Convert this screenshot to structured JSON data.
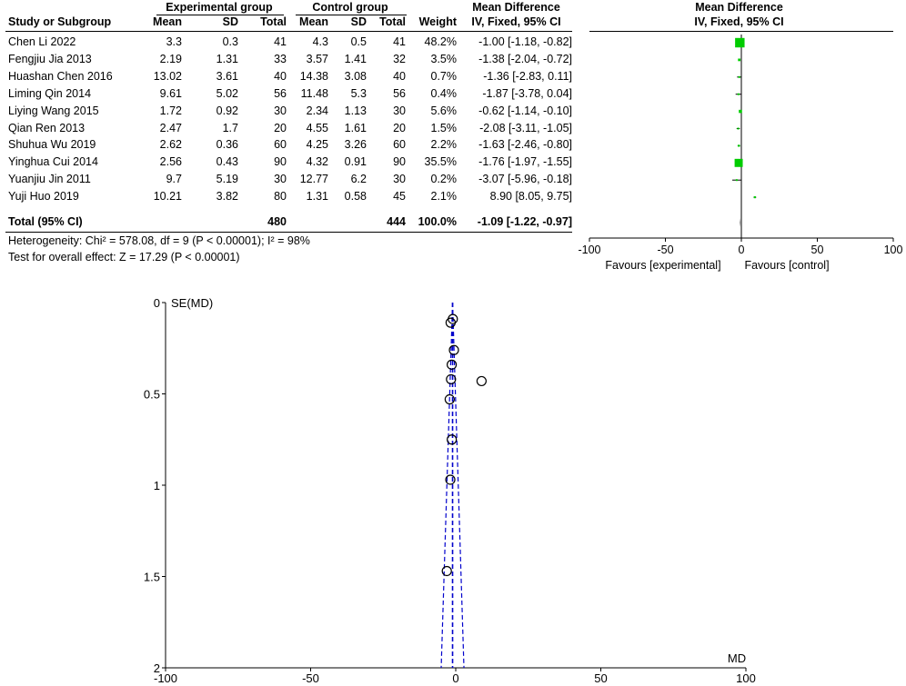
{
  "headers": {
    "experimental": "Experimental group",
    "control": "Control group",
    "md": "Mean Difference",
    "md_method": "IV, Fixed, 95% CI",
    "md_plot": "Mean Difference",
    "md_plot_method": "IV, Fixed, 95% CI",
    "study": "Study or Subgroup",
    "mean": "Mean",
    "sd": "SD",
    "total": "Total",
    "weight": "Weight"
  },
  "studies": [
    {
      "name": "Chen Li 2022",
      "e_mean": "3.3",
      "e_sd": "0.3",
      "e_total": "41",
      "c_mean": "4.3",
      "c_sd": "0.5",
      "c_total": "41",
      "weight": "48.2%",
      "ci_text": "-1.00 [-1.18, -0.82]"
    },
    {
      "name": "Fengjiu Jia 2013",
      "e_mean": "2.19",
      "e_sd": "1.31",
      "e_total": "33",
      "c_mean": "3.57",
      "c_sd": "1.41",
      "c_total": "32",
      "weight": "3.5%",
      "ci_text": "-1.38 [-2.04, -0.72]"
    },
    {
      "name": "Huashan Chen 2016",
      "e_mean": "13.02",
      "e_sd": "3.61",
      "e_total": "40",
      "c_mean": "14.38",
      "c_sd": "3.08",
      "c_total": "40",
      "weight": "0.7%",
      "ci_text": "-1.36 [-2.83, 0.11]"
    },
    {
      "name": "Liming Qin 2014",
      "e_mean": "9.61",
      "e_sd": "5.02",
      "e_total": "56",
      "c_mean": "11.48",
      "c_sd": "5.3",
      "c_total": "56",
      "weight": "0.4%",
      "ci_text": "-1.87 [-3.78, 0.04]"
    },
    {
      "name": "Liying Wang 2015",
      "e_mean": "1.72",
      "e_sd": "0.92",
      "e_total": "30",
      "c_mean": "2.34",
      "c_sd": "1.13",
      "c_total": "30",
      "weight": "5.6%",
      "ci_text": "-0.62 [-1.14, -0.10]"
    },
    {
      "name": "Qian Ren 2013",
      "e_mean": "2.47",
      "e_sd": "1.7",
      "e_total": "20",
      "c_mean": "4.55",
      "c_sd": "1.61",
      "c_total": "20",
      "weight": "1.5%",
      "ci_text": "-2.08 [-3.11, -1.05]"
    },
    {
      "name": "Shuhua Wu 2019",
      "e_mean": "2.62",
      "e_sd": "0.36",
      "e_total": "60",
      "c_mean": "4.25",
      "c_sd": "3.26",
      "c_total": "60",
      "weight": "2.2%",
      "ci_text": "-1.63 [-2.46, -0.80]"
    },
    {
      "name": "Yinghua Cui 2014",
      "e_mean": "2.56",
      "e_sd": "0.43",
      "e_total": "90",
      "c_mean": "4.32",
      "c_sd": "0.91",
      "c_total": "90",
      "weight": "35.5%",
      "ci_text": "-1.76 [-1.97, -1.55]"
    },
    {
      "name": "Yuanjiu Jin 2011",
      "e_mean": "9.7",
      "e_sd": "5.19",
      "e_total": "30",
      "c_mean": "12.77",
      "c_sd": "6.2",
      "c_total": "30",
      "weight": "0.2%",
      "ci_text": "-3.07 [-5.96, -0.18]"
    },
    {
      "name": "Yuji Huo 2019",
      "e_mean": "10.21",
      "e_sd": "3.82",
      "e_total": "80",
      "c_mean": "1.31",
      "c_sd": "0.58",
      "c_total": "45",
      "weight": "2.1%",
      "ci_text": "8.90 [8.05, 9.75]"
    }
  ],
  "total": {
    "label": "Total (95% CI)",
    "e_total": "480",
    "c_total": "444",
    "weight": "100.0%",
    "ci_text": "-1.09 [-1.22, -0.97]"
  },
  "heterogeneity": "Heterogeneity: Chi² = 578.08, df = 9 (P < 0.00001); I² = 98%",
  "overall_effect": "Test for overall effect: Z = 17.29 (P < 0.00001)",
  "favours_experimental": "Favours [experimental]",
  "favours_control": "Favours [control]",
  "colors": {
    "square": "#00cc00",
    "funnel_line": "#0000cc",
    "axis": "#000000"
  },
  "chart_data": [
    {
      "type": "forest",
      "xlim": [
        -100,
        100
      ],
      "xticks": [
        "-100",
        "-50",
        "0",
        "50",
        "100"
      ],
      "points": [
        {
          "study": "Chen Li 2022",
          "md": -1.0,
          "lo": -1.18,
          "hi": -0.82,
          "weight": 48.2
        },
        {
          "study": "Fengjiu Jia 2013",
          "md": -1.38,
          "lo": -2.04,
          "hi": -0.72,
          "weight": 3.5
        },
        {
          "study": "Huashan Chen 2016",
          "md": -1.36,
          "lo": -2.83,
          "hi": 0.11,
          "weight": 0.7
        },
        {
          "study": "Liming Qin 2014",
          "md": -1.87,
          "lo": -3.78,
          "hi": 0.04,
          "weight": 0.4
        },
        {
          "study": "Liying Wang 2015",
          "md": -0.62,
          "lo": -1.14,
          "hi": -0.1,
          "weight": 5.6
        },
        {
          "study": "Qian Ren 2013",
          "md": -2.08,
          "lo": -3.11,
          "hi": -1.05,
          "weight": 1.5
        },
        {
          "study": "Shuhua Wu 2019",
          "md": -1.63,
          "lo": -2.46,
          "hi": -0.8,
          "weight": 2.2
        },
        {
          "study": "Yinghua Cui 2014",
          "md": -1.76,
          "lo": -1.97,
          "hi": -1.55,
          "weight": 35.5
        },
        {
          "study": "Yuanjiu Jin 2011",
          "md": -3.07,
          "lo": -5.96,
          "hi": -0.18,
          "weight": 0.2
        },
        {
          "study": "Yuji Huo 2019",
          "md": 8.9,
          "lo": 8.05,
          "hi": 9.75,
          "weight": 2.1
        }
      ],
      "pooled": {
        "md": -1.09,
        "lo": -1.22,
        "hi": -0.97
      }
    },
    {
      "type": "scatter",
      "xlabel": "MD",
      "ylabel": "SE(MD)",
      "xlim": [
        -100,
        100
      ],
      "ylim": [
        0,
        2
      ],
      "y_reversed": true,
      "xticks": [
        "-100",
        "-50",
        "0",
        "50",
        "100"
      ],
      "yticks": [
        "0",
        "0.5",
        "1",
        "1.5",
        "2"
      ],
      "pooled_md": -1.09,
      "points": [
        {
          "x": -1.0,
          "y": 0.09
        },
        {
          "x": -1.38,
          "y": 0.34
        },
        {
          "x": -1.36,
          "y": 0.75
        },
        {
          "x": -1.87,
          "y": 0.97
        },
        {
          "x": -0.62,
          "y": 0.26
        },
        {
          "x": -2.08,
          "y": 0.53
        },
        {
          "x": -1.63,
          "y": 0.42
        },
        {
          "x": -1.76,
          "y": 0.11
        },
        {
          "x": -3.07,
          "y": 1.47
        },
        {
          "x": 8.9,
          "y": 0.43
        }
      ]
    }
  ]
}
